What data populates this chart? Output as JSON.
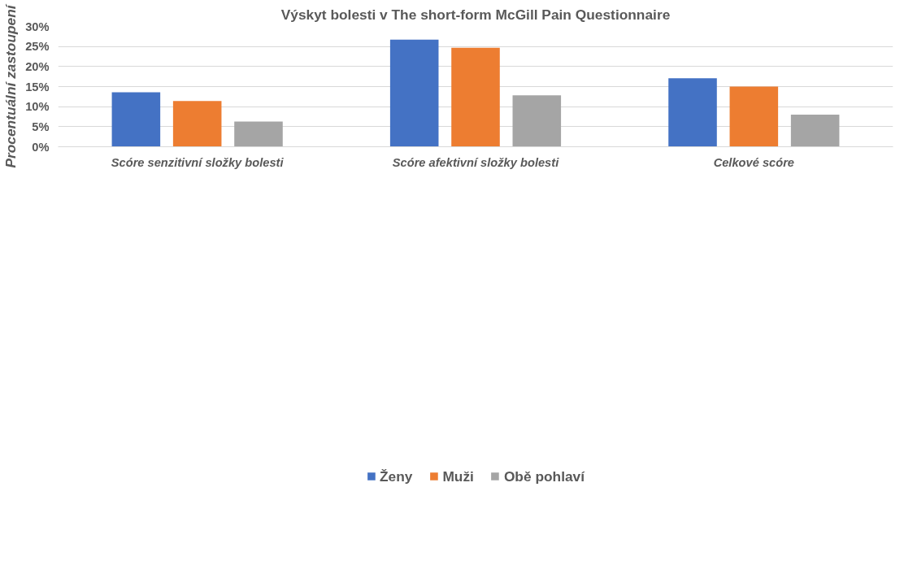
{
  "chart_data": {
    "type": "bar",
    "title": "Výskyt bolesti v The short-form McGill Pain Questionnaire",
    "ylabel": "Procentuální zastoupení",
    "categories": [
      "Scóre senzitivní složky bolesti",
      "Scóre afektivní složky bolesti",
      "Celkové scóre"
    ],
    "series": [
      {
        "name": "Ženy",
        "color": "#4472c4",
        "values": [
          13.6,
          26.7,
          17.1
        ]
      },
      {
        "name": "Muži",
        "color": "#ed7d31",
        "values": [
          11.4,
          24.7,
          15.0
        ]
      },
      {
        "name": "Obě pohlaví",
        "color": "#a5a5a5",
        "values": [
          6.3,
          12.8,
          8.0
        ]
      }
    ],
    "ylim": [
      0,
      30
    ],
    "yticks": [
      {
        "value": 0,
        "label": "0%"
      },
      {
        "value": 5,
        "label": "5%"
      },
      {
        "value": 10,
        "label": "10%"
      },
      {
        "value": 15,
        "label": "15%"
      },
      {
        "value": 20,
        "label": "20%"
      },
      {
        "value": 25,
        "label": "25%"
      },
      {
        "value": 30,
        "label": "30%"
      }
    ],
    "grid": "y",
    "legend": "bottom"
  }
}
